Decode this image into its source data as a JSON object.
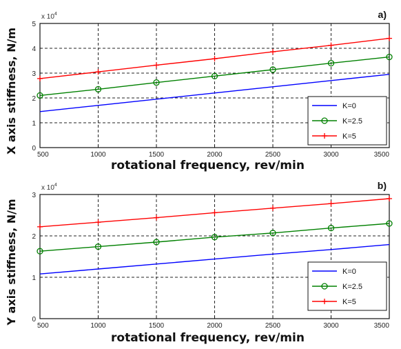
{
  "chart_data": [
    {
      "type": "line",
      "panel_label": "a)",
      "xlabel": "rotational frequency, rev/min",
      "ylabel": "X axis stiffness, N/m",
      "y_multiplier": "x 10",
      "y_multiplier_exp": "4",
      "xlim": [
        500,
        3500
      ],
      "ylim": [
        0,
        5
      ],
      "x_ticks": [
        "500",
        "1000",
        "1500",
        "2000",
        "2500",
        "3000",
        "3500"
      ],
      "y_ticks": [
        "0",
        "1",
        "2",
        "3",
        "4",
        "5"
      ],
      "grid": true,
      "legend_position": "bottom-right",
      "x": [
        500,
        1000,
        1500,
        2000,
        2500,
        3000,
        3500
      ],
      "series": [
        {
          "name": "K=0",
          "color": "#0000ff",
          "marker": "none",
          "values": [
            1.45,
            1.7,
            1.95,
            2.2,
            2.45,
            2.7,
            2.95
          ]
        },
        {
          "name": "K=2.5",
          "color": "#008000",
          "marker": "circle",
          "values": [
            2.1,
            2.35,
            2.62,
            2.88,
            3.14,
            3.4,
            3.65
          ]
        },
        {
          "name": "K=5",
          "color": "#ff0000",
          "marker": "plus",
          "values": [
            2.78,
            3.05,
            3.32,
            3.58,
            3.86,
            4.12,
            4.4
          ]
        }
      ]
    },
    {
      "type": "line",
      "panel_label": "b)",
      "xlabel": "rotational frequency, rev/min",
      "ylabel": "Y axis stiffness, N/m",
      "y_multiplier": "x 10",
      "y_multiplier_exp": "4",
      "xlim": [
        500,
        3500
      ],
      "ylim": [
        0,
        3
      ],
      "x_ticks": [
        "500",
        "1000",
        "1500",
        "2000",
        "2500",
        "3000",
        "3500"
      ],
      "y_ticks": [
        "0",
        "1",
        "2",
        "3"
      ],
      "grid": true,
      "legend_position": "bottom-right",
      "x": [
        500,
        1000,
        1500,
        2000,
        2500,
        3000,
        3500
      ],
      "series": [
        {
          "name": "K=0",
          "color": "#0000ff",
          "marker": "none",
          "values": [
            1.08,
            1.2,
            1.32,
            1.44,
            1.56,
            1.67,
            1.79
          ]
        },
        {
          "name": "K=2.5",
          "color": "#008000",
          "marker": "circle",
          "values": [
            1.63,
            1.74,
            1.85,
            1.97,
            2.07,
            2.19,
            2.3
          ]
        },
        {
          "name": "K=5",
          "color": "#ff0000",
          "marker": "plus",
          "values": [
            2.22,
            2.33,
            2.44,
            2.56,
            2.67,
            2.78,
            2.9
          ]
        }
      ]
    }
  ]
}
